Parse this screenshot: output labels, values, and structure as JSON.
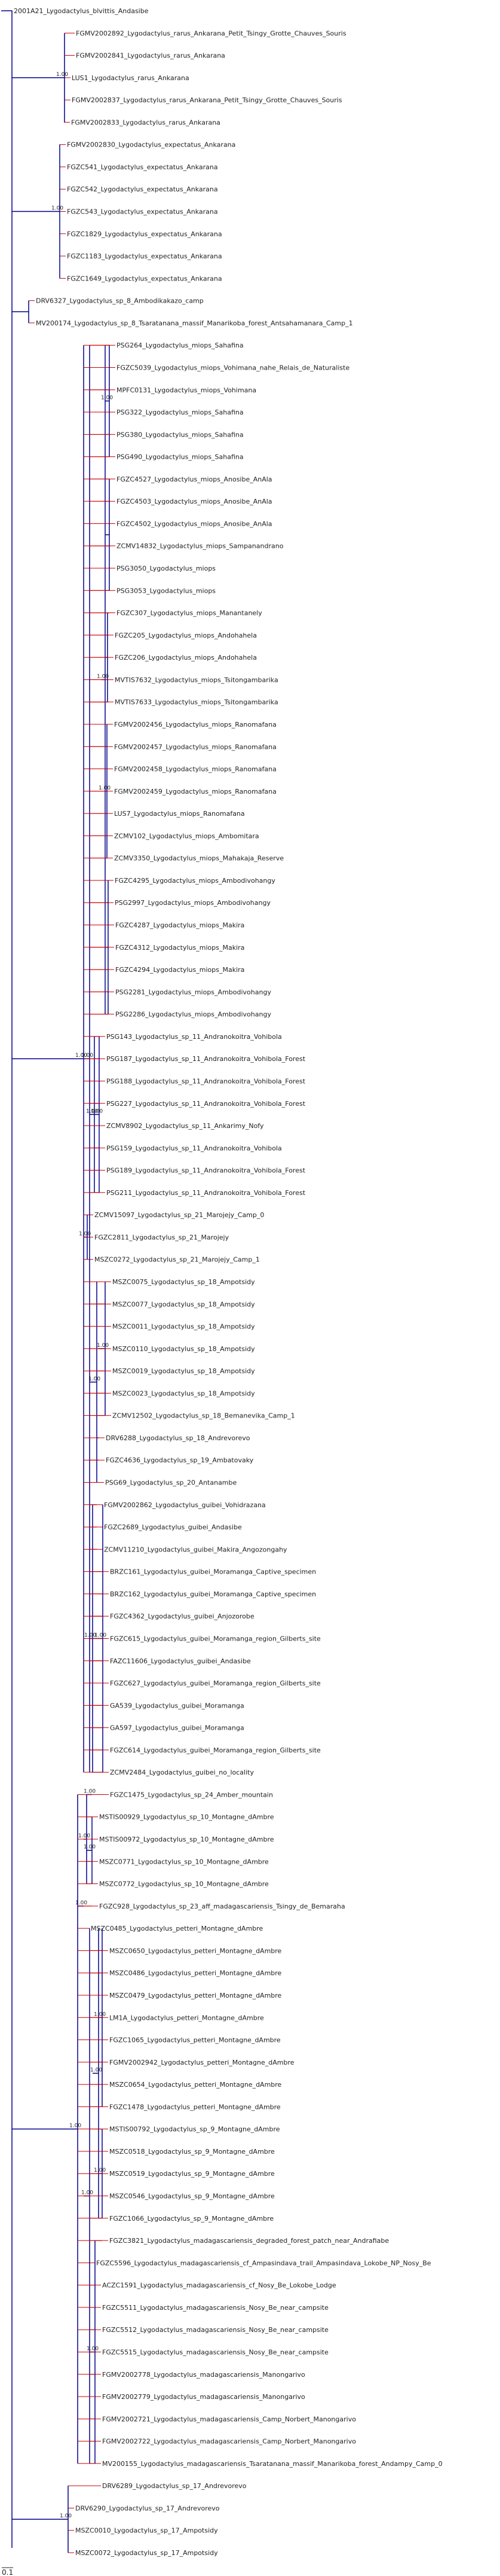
{
  "colors": {
    "branch": "#00008b",
    "minor_branch": "#cc0000",
    "text": "#222222"
  },
  "scale_label": "0.1",
  "taxa": [
    "2001A21_Lygodactylus_blvittis_Andasibe",
    "FGMV2002892_Lygodactylus_rarus_Ankarana_Petit_Tsingy_Grotte_Chauves_Souris",
    "FGMV2002841_Lygodactylus_rarus_Ankarana",
    "LUS1_Lygodactylus_rarus_Ankarana",
    "FGMV2002837_Lygodactylus_rarus_Ankarana_Petit_Tsingy_Grotte_Chauves_Souris",
    "FGMV2002833_Lygodactylus_rarus_Ankarana",
    "FGMV2002830_Lygodactylus_expectatus_Ankarana",
    "FGZC541_Lygodactylus_expectatus_Ankarana",
    "FGZC542_Lygodactylus_expectatus_Ankarana",
    "FGZC543_Lygodactylus_expectatus_Ankarana",
    "FGZC1829_Lygodactylus_expectatus_Ankarana",
    "FGZC1183_Lygodactylus_expectatus_Ankarana",
    "FGZC1649_Lygodactylus_expectatus_Ankarana",
    "DRV6327_Lygodactylus_sp_8_Ambodikakazo_camp",
    "MV200174_Lygodactylus_sp_8_Tsaratanana_massif_Manarikoba_forest_Antsahamanara_Camp_1",
    "PSG264_Lygodactylus_miops_Sahafina",
    "FGZC5039_Lygodactylus_miops_Vohimana_nahe_Relais_de_Naturaliste",
    "MPFC0131_Lygodactylus_miops_Vohimana",
    "PSG322_Lygodactylus_miops_Sahafina",
    "PSG380_Lygodactylus_miops_Sahafina",
    "PSG490_Lygodactylus_miops_Sahafina",
    "FGZC4527_Lygodactylus_miops_Anosibe_AnAla",
    "FGZC4503_Lygodactylus_miops_Anosibe_AnAla",
    "FGZC4502_Lygodactylus_miops_Anosibe_AnAla",
    "ZCMV14832_Lygodactylus_miops_Sampanandrano",
    "PSG3050_Lygodactylus_miops",
    "PSG3053_Lygodactylus_miops",
    "FGZC307_Lygodactylus_miops_Manantanely",
    "FGZC205_Lygodactylus_miops_Andohahela",
    "FGZC206_Lygodactylus_miops_Andohahela",
    "MVTIS7632_Lygodactylus_miops_Tsitongambarika",
    "MVTIS7633_Lygodactylus_miops_Tsitongambarika",
    "FGMV2002456_Lygodactylus_miops_Ranomafana",
    "FGMV2002457_Lygodactylus_miops_Ranomafana",
    "FGMV2002458_Lygodactylus_miops_Ranomafana",
    "FGMV2002459_Lygodactylus_miops_Ranomafana",
    "LUS7_Lygodactylus_miops_Ranomafana",
    "ZCMV102_Lygodactylus_miops_Ambomitara",
    "ZCMV3350_Lygodactylus_miops_Mahakaja_Reserve",
    "FGZC4295_Lygodactylus_miops_Ambodivohangy",
    "PSG2997_Lygodactylus_miops_Ambodivohangy",
    "FGZC4287_Lygodactylus_miops_Makira",
    "FGZC4312_Lygodactylus_miops_Makira",
    "FGZC4294_Lygodactylus_miops_Makira",
    "PSG2281_Lygodactylus_miops_Ambodivohangy",
    "PSG2286_Lygodactylus_miops_Ambodivohangy",
    "PSG143_Lygodactylus_sp_11_Andranokoitra_Vohibola",
    "PSG187_Lygodactylus_sp_11_Andranokoitra_Vohibola_Forest",
    "PSG188_Lygodactylus_sp_11_Andranokoitra_Vohibola_Forest",
    "PSG227_Lygodactylus_sp_11_Andranokoitra_Vohibola_Forest",
    "ZCMV8902_Lygodactylus_sp_11_Ankarimy_Nofy",
    "PSG159_Lygodactylus_sp_11_Andranokoitra_Vohibola",
    "PSG189_Lygodactylus_sp_11_Andranokoitra_Vohibola_Forest",
    "PSG211_Lygodactylus_sp_11_Andranokoitra_Vohibola_Forest",
    "ZCMV15097_Lygodactylus_sp_21_Marojejy_Camp_0",
    "FGZC2811_Lygodactylus_sp_21_Marojejy",
    "MSZC0272_Lygodactylus_sp_21_Marojejy_Camp_1",
    "MSZC0075_Lygodactylus_sp_18_Ampotsidy",
    "MSZC0077_Lygodactylus_sp_18_Ampotsidy",
    "MSZC0011_Lygodactylus_sp_18_Ampotsidy",
    "MSZC0110_Lygodactylus_sp_18_Ampotsidy",
    "MSZC0019_Lygodactylus_sp_18_Ampotsidy",
    "MSZC0023_Lygodactylus_sp_18_Ampotsidy",
    "ZCMV12502_Lygodactylus_sp_18_Bemanevika_Camp_1",
    "DRV6288_Lygodactylus_sp_18_Andrevorevo",
    "FGZC4636_Lygodactylus_sp_19_Ambatovaky",
    "PSG69_Lygodactylus_sp_20_Antanambe",
    "FGMV2002862_Lygodactylus_guibei_Vohidrazana",
    "FGZC2689_Lygodactylus_guibei_Andasibe",
    "ZCMV11210_Lygodactylus_guibei_Makira_Angozongahy",
    "BRZC161_Lygodactylus_guibei_Moramanga_Captive_specimen",
    "BRZC162_Lygodactylus_guibei_Moramanga_Captive_specimen",
    "FGZC4362_Lygodactylus_guibei_Anjozorobe",
    "FGZC615_Lygodactylus_guibei_Moramanga_region_Gilberts_site",
    "FAZC11606_Lygodactylus_guibei_Andasibe",
    "FGZC627_Lygodactylus_guibei_Moramanga_region_Gilberts_site",
    "GA539_Lygodactylus_guibei_Moramanga",
    "GA597_Lygodactylus_guibei_Moramanga",
    "FGZC614_Lygodactylus_guibei_Moramanga_region_Gilberts_site",
    "ZCMV2484_Lygodactylus_guibei_no_locality",
    "FGZC1475_Lygodactylus_sp_24_Amber_mountain",
    "MSTIS00929_Lygodactylus_sp_10_Montagne_dAmbre",
    "MSTIS00972_Lygodactylus_sp_10_Montagne_dAmbre",
    "MSZC0771_Lygodactylus_sp_10_Montagne_dAmbre",
    "MSZC0772_Lygodactylus_sp_10_Montagne_dAmbre",
    "FGZC928_Lygodactylus_sp_23_aff_madagascariensis_Tsingy_de_Bemaraha",
    "MSZC0485_Lygodactylus_petteri_Montagne_dAmbre",
    "MSZC0650_Lygodactylus_petteri_Montagne_dAmbre",
    "MSZC0486_Lygodactylus_petteri_Montagne_dAmbre",
    "MSZC0479_Lygodactylus_petteri_Montagne_dAmbre",
    "LM1A_Lygodactylus_petteri_Montagne_dAmbre",
    "FGZC1065_Lygodactylus_petteri_Montagne_dAmbre",
    "FGMV2002942_Lygodactylus_petteri_Montagne_dAmbre",
    "MSZC0654_Lygodactylus_petteri_Montagne_dAmbre",
    "FGZC1478_Lygodactylus_petteri_Montagne_dAmbre",
    "MSTIS00792_Lygodactylus_sp_9_Montagne_dAmbre",
    "MSZC0518_Lygodactylus_sp_9_Montagne_dAmbre",
    "MSZC0519_Lygodactylus_sp_9_Montagne_dAmbre",
    "MSZC0546_Lygodactylus_sp_9_Montagne_dAmbre",
    "FGZC1066_Lygodactylus_sp_9_Montagne_dAmbre",
    "FGZC3821_Lygodactylus_madagascariensis_degraded_forest_patch_near_Andrafiabe",
    "FGZC5596_Lygodactylus_madagascariensis_cf_Ampasindava_trail_Ampasindava_Lokobe_NP_Nosy_Be",
    "ACZC1591_Lygodactylus_madagascariensis_cf_Nosy_Be_Lokobe_Lodge",
    "FGZC5511_Lygodactylus_madagascariensis_Nosy_Be_near_campsite",
    "FGZC5512_Lygodactylus_madagascariensis_Nosy_Be_near_campsite",
    "FGZC5515_Lygodactylus_madagascariensis_Nosy_Be_near_campsite",
    "FGMV2002778_Lygodactylus_madagascariensis_Manongarivo",
    "FGMV2002779_Lygodactylus_madagascariensis_Manongarivo",
    "FGMV2002721_Lygodactylus_madagascariensis_Camp_Norbert_Manongarivo",
    "FGMV2002722_Lygodactylus_madagascariensis_Camp_Norbert_Manongarivo",
    "MV200155_Lygodactylus_madagascariensis_Tsaratanana_massif_Manarikoba_forest_Andampy_Camp_0",
    "DRV6289_Lygodactylus_sp_17_Andrevorevo",
    "DRV6290_Lygodactylus_sp_17_Andrevorevo",
    "MSZC0010_Lygodactylus_sp_17_Ampotsidy",
    "MSZC0072_Lygodactylus_sp_17_Ampotsidy"
  ],
  "support_labels": [
    "1.00",
    "1.00",
    "1.00",
    "1.00",
    "1.00",
    "1.00",
    "1.00",
    "1.00",
    "1.00",
    "1.00",
    "1.00",
    "1.00",
    "1.00",
    "1.00",
    "1.00",
    "1.00",
    "1.00",
    "1.00",
    "1.00",
    "1.00",
    "1.00",
    "1.00",
    "1.00",
    "1.00",
    "1.00",
    "1.00",
    "1.00",
    "1.00",
    "1.00",
    "1.00",
    "1.00",
    "1.00",
    "1.00",
    "1.00",
    "1.00"
  ]
}
